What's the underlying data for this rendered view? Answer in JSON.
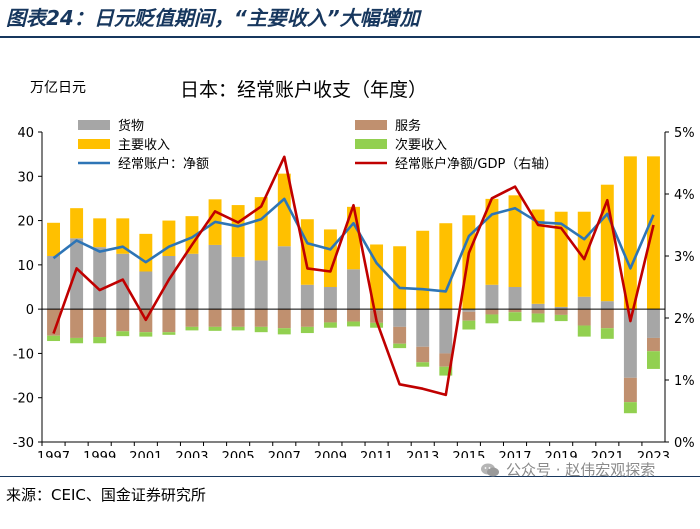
{
  "header": {
    "figure_title": "图表24：日元贬值期间，“主要收入”大幅增加"
  },
  "footer": {
    "source": "来源：CEIC、国金证券研究所",
    "watermark": "公众号 · 赵伟宏观探索"
  },
  "colors": {
    "goods": "#a6a6a6",
    "services": "#c0906f",
    "primary_income": "#ffc000",
    "secondary_income": "#92d050",
    "net_ca": "#2e75b6",
    "ca_gdp": "#c00000",
    "title_color": "#17375e"
  },
  "chart_data": {
    "type": "bar",
    "title": "日本：经常账户收支（年度）",
    "ylabel": "万亿日元",
    "ylim": [
      -30,
      40
    ],
    "yticks": [
      -30,
      -20,
      -10,
      0,
      10,
      20,
      30,
      40
    ],
    "y2lim": [
      0,
      5
    ],
    "y2ticks": [
      "0%",
      "1%",
      "2%",
      "3%",
      "4%",
      "5%"
    ],
    "categories": [
      "1997",
      "1998",
      "1999",
      "2000",
      "2001",
      "2002",
      "2003",
      "2004",
      "2005",
      "2006",
      "2007",
      "2008",
      "2009",
      "2010",
      "2011",
      "2012",
      "2013",
      "2014",
      "2015",
      "2016",
      "2017",
      "2018",
      "2019",
      "2020",
      "2021",
      "2022",
      "2023"
    ],
    "xtick_labels": [
      "1997",
      "",
      "1999",
      "",
      "2001",
      "",
      "2003",
      "",
      "2005",
      "",
      "2007",
      "",
      "2009",
      "",
      "2011",
      "",
      "2013",
      "",
      "2015",
      "",
      "2017",
      "",
      "2019",
      "",
      "2021",
      "",
      "2023"
    ],
    "legend": [
      "货物",
      "服务",
      "主要收入",
      "次要收入",
      "经常账户：净额",
      "经常账户净额/GDP（右轴）"
    ],
    "series": [
      {
        "name": "货物",
        "key": "goods",
        "type": "bar",
        "values": [
          12.0,
          16.0,
          14.0,
          12.5,
          8.5,
          12.0,
          12.5,
          14.5,
          11.8,
          11.0,
          14.2,
          5.5,
          5.0,
          9.0,
          -0.3,
          -4.0,
          -8.5,
          -10.0,
          -0.6,
          5.5,
          5.0,
          1.2,
          0.5,
          2.8,
          1.8,
          -15.5,
          -6.5
        ]
      },
      {
        "name": "服务",
        "key": "services",
        "type": "bar",
        "values": [
          -6.0,
          -6.5,
          -6.3,
          -5.0,
          -5.2,
          -5.2,
          -4.0,
          -4.0,
          -4.0,
          -4.0,
          -4.3,
          -4.0,
          -3.0,
          -2.8,
          -2.8,
          -3.8,
          -3.5,
          -3.0,
          -2.0,
          -1.2,
          -0.7,
          -1.0,
          -1.3,
          -3.7,
          -4.3,
          -5.5,
          -3.0
        ]
      },
      {
        "name": "主要收入",
        "key": "primary_income",
        "type": "bar",
        "values": [
          7.5,
          6.8,
          6.5,
          8.0,
          8.5,
          8.0,
          8.5,
          10.3,
          11.7,
          14.3,
          16.4,
          14.8,
          13.0,
          14.1,
          14.6,
          14.2,
          17.7,
          19.4,
          21.2,
          19.4,
          20.7,
          21.3,
          21.5,
          19.2,
          26.3,
          34.5,
          34.5
        ]
      },
      {
        "name": "次要收入",
        "key": "secondary_income",
        "type": "bar",
        "values": [
          -1.2,
          -1.2,
          -1.4,
          -1.1,
          -1.0,
          -0.6,
          -0.8,
          -0.9,
          -0.8,
          -1.2,
          -1.4,
          -1.4,
          -1.2,
          -1.1,
          -1.1,
          -1.0,
          -1.0,
          -2.0,
          -2.0,
          -2.0,
          -2.0,
          -2.0,
          -1.4,
          -2.5,
          -2.4,
          -2.5,
          -4.0
        ]
      },
      {
        "name": "经常账户：净额",
        "key": "net_ca",
        "type": "line",
        "axis": "left",
        "values": [
          11.5,
          15.5,
          13.0,
          14.1,
          10.6,
          14.1,
          16.2,
          19.7,
          18.7,
          20.3,
          24.9,
          14.9,
          13.5,
          19.4,
          10.4,
          4.8,
          4.5,
          4.0,
          16.5,
          21.4,
          22.8,
          19.6,
          19.3,
          15.8,
          21.5,
          9.2,
          21.3
        ]
      },
      {
        "name": "经常账户净额/GDP（右轴）",
        "key": "ca_gdp",
        "type": "line",
        "axis": "right",
        "values": [
          1.75,
          2.8,
          2.45,
          2.62,
          1.97,
          2.62,
          3.18,
          3.72,
          3.54,
          3.8,
          4.6,
          2.8,
          2.75,
          3.82,
          1.95,
          0.93,
          0.86,
          0.76,
          3.05,
          3.93,
          4.12,
          3.5,
          3.45,
          2.95,
          3.9,
          1.95,
          3.5
        ]
      }
    ]
  }
}
